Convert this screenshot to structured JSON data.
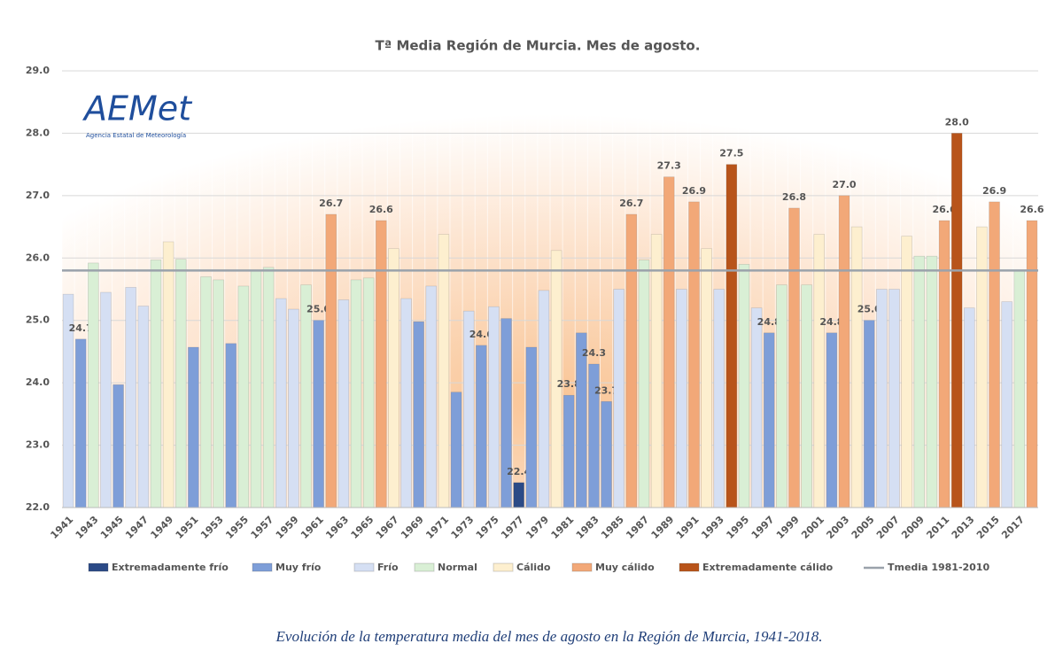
{
  "chart_data": {
    "type": "bar",
    "title": "Tª Media Región de Murcia. Mes de agosto.",
    "categories": [
      "1941",
      null,
      "1943",
      null,
      "1945",
      null,
      "1947",
      null,
      "1949",
      null,
      "1951",
      null,
      "1953",
      null,
      "1955",
      null,
      "1957",
      null,
      "1959",
      null,
      "1961",
      null,
      "1963",
      null,
      "1965",
      null,
      "1967",
      null,
      "1969",
      null,
      "1971",
      null,
      "1973",
      null,
      "1975",
      null,
      "1977",
      null,
      "1979",
      null,
      "1981",
      null,
      "1983",
      null,
      "1985",
      null,
      "1987",
      null,
      "1989",
      null,
      "1991",
      null,
      "1993",
      null,
      "1995",
      null,
      "1997",
      null,
      "1999",
      null,
      "2001",
      null,
      "2003",
      null,
      "2005",
      null,
      "2007",
      null,
      "2009",
      null,
      "2011",
      null,
      "2013",
      null,
      "2015",
      null,
      "2017",
      null
    ],
    "values": [
      25.42,
      24.7,
      25.92,
      25.45,
      23.97,
      25.53,
      25.23,
      25.97,
      26.26,
      25.98,
      24.57,
      25.7,
      25.65,
      24.63,
      25.55,
      25.8,
      25.85,
      25.35,
      25.18,
      25.57,
      25.0,
      26.7,
      25.33,
      25.65,
      25.68,
      26.6,
      26.15,
      25.35,
      24.98,
      25.55,
      26.38,
      23.85,
      25.15,
      24.6,
      25.22,
      25.03,
      22.4,
      24.57,
      25.48,
      26.12,
      23.8,
      24.8,
      24.3,
      23.7,
      25.5,
      26.7,
      25.97,
      26.38,
      27.3,
      25.5,
      26.9,
      26.15,
      25.5,
      27.5,
      25.9,
      25.2,
      24.8,
      25.57,
      26.8,
      25.57,
      26.38,
      24.8,
      27.0,
      26.5,
      25.0,
      25.5,
      25.5,
      26.35,
      26.03,
      26.03,
      26.6,
      28.0,
      25.2,
      26.5,
      26.9,
      25.3,
      25.8,
      26.6
    ],
    "value_labels": [
      null,
      "24.7",
      null,
      null,
      null,
      null,
      null,
      null,
      null,
      null,
      null,
      null,
      null,
      null,
      null,
      null,
      null,
      null,
      null,
      null,
      "25.0",
      "26.7",
      null,
      null,
      null,
      "26.6",
      null,
      null,
      null,
      null,
      null,
      null,
      null,
      "24.6",
      null,
      null,
      "22.4",
      null,
      null,
      null,
      "23.8",
      null,
      "24.3",
      "23.7",
      null,
      "26.7",
      null,
      null,
      "27.3",
      null,
      "26.9",
      null,
      null,
      "27.5",
      null,
      null,
      "24.8",
      null,
      "26.8",
      null,
      null,
      "24.8",
      "27.0",
      null,
      "25.0",
      null,
      null,
      null,
      null,
      null,
      "26.6",
      "28.0",
      null,
      null,
      "26.9",
      null,
      null,
      "26.6"
    ],
    "bar_colors": [
      "#d5dff3",
      "#7e9ed8",
      "#d9efd5",
      "#d5dff3",
      "#7e9ed8",
      "#d5dff3",
      "#d5dff3",
      "#d9efd5",
      "#fdefcf",
      "#d9efd5",
      "#7e9ed8",
      "#d9efd5",
      "#d9efd5",
      "#7e9ed8",
      "#d9efd5",
      "#d9efd5",
      "#d9efd5",
      "#d5dff3",
      "#d5dff3",
      "#d9efd5",
      "#7e9ed8",
      "#f2a878",
      "#d5dff3",
      "#d9efd5",
      "#d9efd5",
      "#f2a878",
      "#fdefcf",
      "#d5dff3",
      "#7e9ed8",
      "#d5dff3",
      "#fdefcf",
      "#7e9ed8",
      "#d5dff3",
      "#7e9ed8",
      "#d5dff3",
      "#7e9ed8",
      "#2b4a86",
      "#7e9ed8",
      "#d5dff3",
      "#fdefcf",
      "#7e9ed8",
      "#7e9ed8",
      "#7e9ed8",
      "#7e9ed8",
      "#d5dff3",
      "#f2a878",
      "#d9efd5",
      "#fdefcf",
      "#f2a878",
      "#d5dff3",
      "#f2a878",
      "#fdefcf",
      "#d5dff3",
      "#b8541a",
      "#d9efd5",
      "#d5dff3",
      "#7e9ed8",
      "#d9efd5",
      "#f2a878",
      "#d9efd5",
      "#fdefcf",
      "#7e9ed8",
      "#f2a878",
      "#fdefcf",
      "#7e9ed8",
      "#d5dff3",
      "#d5dff3",
      "#fdefcf",
      "#d9efd5",
      "#d9efd5",
      "#f2a878",
      "#b8541a",
      "#d5dff3",
      "#fdefcf",
      "#f2a878",
      "#d5dff3",
      "#d9efd5",
      "#f2a878"
    ],
    "legend": [
      {
        "name": "Extremadamente frío",
        "color": "#2b4a86"
      },
      {
        "name": "Muy frío",
        "color": "#7e9ed8"
      },
      {
        "name": "Frío",
        "color": "#d5dff3"
      },
      {
        "name": "Normal",
        "color": "#d9efd5"
      },
      {
        "name": "Cálido",
        "color": "#fdefcf"
      },
      {
        "name": "Muy cálido",
        "color": "#f2a878"
      },
      {
        "name": "Extremadamente cálido",
        "color": "#b8541a"
      }
    ],
    "reference_line": {
      "name": "Tmedia 1981-2010",
      "value": 25.8,
      "color": "#9aa2ab"
    },
    "ylim": [
      22,
      29
    ],
    "yticks": [
      {
        "value": 22,
        "label": "22.0"
      },
      {
        "value": 23,
        "label": "23.0"
      },
      {
        "value": 24,
        "label": "24.0"
      },
      {
        "value": 25,
        "label": "25.0"
      },
      {
        "value": 26,
        "label": "26.0"
      },
      {
        "value": 27,
        "label": "27.0"
      },
      {
        "value": 28,
        "label": "28.0"
      },
      {
        "value": 29,
        "label": "29.0"
      }
    ],
    "grid": true,
    "logo": {
      "name": "AEMet",
      "subtitle": "Agencia Estatal de Meteorología"
    },
    "caption": "Evolución de la temperatura media del mes de agosto en la Región de Murcia, 1941-2018."
  }
}
